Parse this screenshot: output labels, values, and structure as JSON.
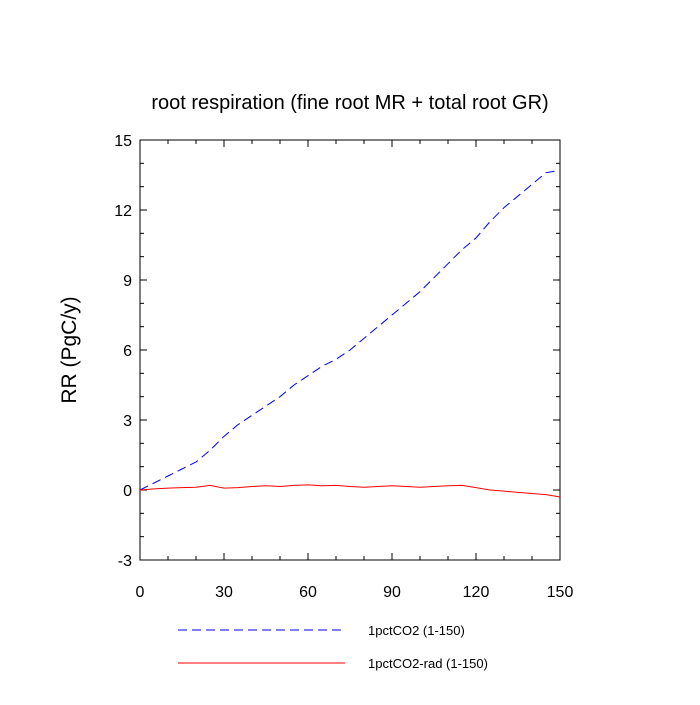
{
  "chart_data": {
    "type": "line",
    "title": "root respiration (fine root MR + total root GR)",
    "xlabel": "",
    "ylabel": "RR  (PgC/y)",
    "xlim": [
      0,
      150
    ],
    "ylim": [
      -3,
      15
    ],
    "x_ticks": [
      0,
      30,
      60,
      90,
      120,
      150
    ],
    "x_tick_labels": [
      "0",
      "30",
      "60",
      "90",
      "120",
      "150"
    ],
    "y_ticks": [
      -3,
      0,
      3,
      6,
      9,
      12,
      15
    ],
    "y_tick_labels": [
      "-3",
      "0",
      "3",
      "6",
      "9",
      "12",
      "15"
    ],
    "grid": false,
    "legend_position": "bottom",
    "series": [
      {
        "name": "1pctCO2 (1-150)",
        "color": "#0000ff",
        "style": "dashed",
        "x": [
          0,
          5,
          10,
          15,
          20,
          25,
          30,
          35,
          40,
          45,
          50,
          55,
          60,
          65,
          70,
          75,
          80,
          85,
          90,
          95,
          100,
          105,
          110,
          115,
          120,
          125,
          130,
          135,
          140,
          145,
          150
        ],
        "y": [
          0.0,
          0.3,
          0.6,
          0.9,
          1.2,
          1.7,
          2.3,
          2.8,
          3.2,
          3.6,
          4.0,
          4.5,
          4.9,
          5.3,
          5.6,
          6.0,
          6.5,
          7.0,
          7.5,
          8.0,
          8.5,
          9.1,
          9.7,
          10.3,
          10.8,
          11.5,
          12.1,
          12.6,
          13.1,
          13.6,
          13.7
        ]
      },
      {
        "name": "1pctCO2-rad (1-150)",
        "color": "#ff0000",
        "style": "solid",
        "x": [
          0,
          5,
          10,
          15,
          20,
          25,
          30,
          35,
          40,
          45,
          50,
          55,
          60,
          65,
          70,
          75,
          80,
          85,
          90,
          95,
          100,
          105,
          110,
          115,
          120,
          125,
          130,
          135,
          140,
          145,
          150
        ],
        "y": [
          0.0,
          0.05,
          0.08,
          0.1,
          0.12,
          0.2,
          0.08,
          0.1,
          0.15,
          0.18,
          0.15,
          0.2,
          0.22,
          0.18,
          0.2,
          0.15,
          0.12,
          0.15,
          0.18,
          0.15,
          0.12,
          0.15,
          0.18,
          0.2,
          0.1,
          0.0,
          -0.05,
          -0.1,
          -0.15,
          -0.2,
          -0.3
        ]
      }
    ]
  }
}
